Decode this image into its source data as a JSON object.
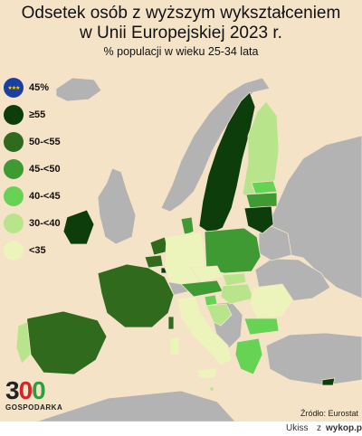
{
  "header": {
    "title_line1": "Odsetek osób z wyższym wykształceniem",
    "title_line2": "w Unii Europejskiej 2023 r.",
    "subtitle": "% populacji w wieku 25-34 lata"
  },
  "legend": {
    "eu_value": "45%",
    "items": [
      {
        "label": "≥55",
        "color": "#0e3d0c"
      },
      {
        "label": "50-<55",
        "color": "#2f6a1d"
      },
      {
        "label": "45-<50",
        "color": "#3f9a33"
      },
      {
        "label": "40-<45",
        "color": "#66d354"
      },
      {
        "label": "30-<40",
        "color": "#b8e48c"
      },
      {
        "label": "<35",
        "color": "#ecf3bb"
      }
    ]
  },
  "colors": {
    "background": "#f5e3c8",
    "non_eu": "#b3b3b3",
    "eu_blue": "#1a3fa0"
  },
  "logo": {
    "number_digit": "3",
    "number_circles": "00",
    "text": "GOSPODARKA"
  },
  "source": "Źródło: Eurostat",
  "footer": {
    "user": "Ukiss",
    "separator": "z",
    "site": "wykop.pl"
  }
}
